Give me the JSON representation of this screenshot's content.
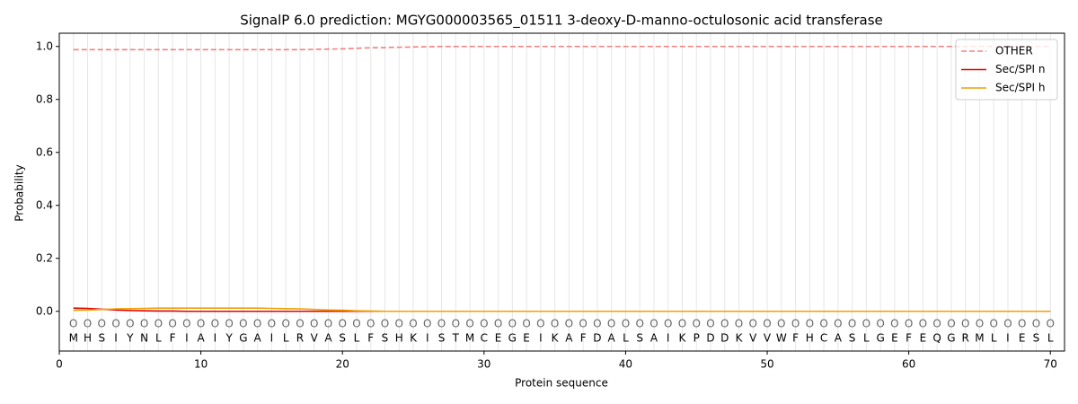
{
  "chart_data": {
    "type": "line",
    "title": "SignalP 6.0 prediction: MGYG000003565_01511 3-deoxy-D-manno-octulosonic acid transferase",
    "xlabel": "Protein sequence",
    "ylabel": "Probability",
    "x": [
      1,
      2,
      3,
      4,
      5,
      6,
      7,
      8,
      9,
      10,
      11,
      12,
      13,
      14,
      15,
      16,
      17,
      18,
      19,
      20,
      21,
      22,
      23,
      24,
      25,
      26,
      27,
      28,
      29,
      30,
      31,
      32,
      33,
      34,
      35,
      36,
      37,
      38,
      39,
      40,
      41,
      42,
      43,
      44,
      45,
      46,
      47,
      48,
      49,
      50,
      51,
      52,
      53,
      54,
      55,
      56,
      57,
      58,
      59,
      60,
      61,
      62,
      63,
      64,
      65,
      66,
      67,
      68,
      69,
      70
    ],
    "sequence": [
      "M",
      "H",
      "S",
      "I",
      "Y",
      "N",
      "L",
      "F",
      "I",
      "A",
      "I",
      "Y",
      "G",
      "A",
      "I",
      "L",
      "R",
      "V",
      "A",
      "S",
      "L",
      "F",
      "S",
      "H",
      "K",
      "I",
      "S",
      "T",
      "M",
      "C",
      "E",
      "G",
      "E",
      "I",
      "K",
      "A",
      "F",
      "D",
      "A",
      "L",
      "S",
      "A",
      "I",
      "K",
      "P",
      "D",
      "D",
      "K",
      "V",
      "V",
      "W",
      "F",
      "H",
      "C",
      "A",
      "S",
      "L",
      "G",
      "E",
      "F",
      "E",
      "Q",
      "G",
      "R",
      "M",
      "L",
      "I",
      "E",
      "S",
      "L"
    ],
    "predicted_labels": [
      "O",
      "O",
      "O",
      "O",
      "O",
      "O",
      "O",
      "O",
      "O",
      "O",
      "O",
      "O",
      "O",
      "O",
      "O",
      "O",
      "O",
      "O",
      "O",
      "O",
      "O",
      "O",
      "O",
      "O",
      "O",
      "O",
      "O",
      "O",
      "O",
      "O",
      "O",
      "O",
      "O",
      "O",
      "O",
      "O",
      "O",
      "O",
      "O",
      "O",
      "O",
      "O",
      "O",
      "O",
      "O",
      "O",
      "O",
      "O",
      "O",
      "O",
      "O",
      "O",
      "O",
      "O",
      "O",
      "O",
      "O",
      "O",
      "O",
      "O",
      "O",
      "O",
      "O",
      "O",
      "O",
      "O",
      "O",
      "O",
      "O",
      "O"
    ],
    "series": [
      {
        "name": "OTHER",
        "color": "#f08080",
        "dashed": true,
        "values": [
          0.988,
          0.988,
          0.988,
          0.988,
          0.988,
          0.988,
          0.988,
          0.988,
          0.988,
          0.988,
          0.988,
          0.988,
          0.988,
          0.988,
          0.988,
          0.988,
          0.988,
          0.989,
          0.99,
          0.991,
          0.993,
          0.995,
          0.996,
          0.997,
          0.998,
          0.999,
          1,
          1,
          1,
          1,
          1,
          1,
          1,
          1,
          1,
          1,
          1,
          1,
          1,
          1,
          1,
          1,
          1,
          1,
          1,
          1,
          1,
          1,
          1,
          1,
          1,
          1,
          1,
          1,
          1,
          1,
          1,
          1,
          1,
          1,
          1,
          1,
          1,
          1,
          1,
          1,
          1,
          1,
          1,
          1
        ]
      },
      {
        "name": "Sec/SPI n",
        "color": "#e00000",
        "dashed": false,
        "values": [
          0.012,
          0.011,
          0.008,
          0.005,
          0.003,
          0.002,
          0.001,
          0.001,
          0,
          0,
          0,
          0,
          0,
          0,
          0,
          0,
          0,
          0,
          0,
          0,
          0,
          0,
          0,
          0,
          0,
          0,
          0,
          0,
          0,
          0,
          0,
          0,
          0,
          0,
          0,
          0,
          0,
          0,
          0,
          0,
          0,
          0,
          0,
          0,
          0,
          0,
          0,
          0,
          0,
          0,
          0,
          0,
          0,
          0,
          0,
          0,
          0,
          0,
          0,
          0,
          0,
          0,
          0,
          0,
          0,
          0,
          0,
          0,
          0,
          0
        ]
      },
      {
        "name": "Sec/SPI h",
        "color": "#f0a000",
        "dashed": false,
        "values": [
          0.004,
          0.005,
          0.007,
          0.009,
          0.01,
          0.011,
          0.012,
          0.012,
          0.012,
          0.012,
          0.012,
          0.012,
          0.012,
          0.012,
          0.011,
          0.01,
          0.009,
          0.007,
          0.005,
          0.004,
          0.002,
          0.001,
          0,
          0,
          0,
          0,
          0,
          0,
          0,
          0,
          0,
          0,
          0,
          0,
          0,
          0,
          0,
          0,
          0,
          0,
          0,
          0,
          0,
          0,
          0,
          0,
          0,
          0,
          0,
          0,
          0,
          0,
          0,
          0,
          0,
          0,
          0,
          0,
          0,
          0,
          0,
          0,
          0,
          0,
          0,
          0,
          0,
          0,
          0,
          0
        ]
      }
    ],
    "xlim": [
      0,
      71
    ],
    "ylim": [
      -0.15,
      1.05
    ],
    "xticks": [
      0,
      10,
      20,
      30,
      40,
      50,
      60,
      70
    ],
    "yticks": [
      {
        "value": 0,
        "label": "0.0"
      },
      {
        "value": 0.2,
        "label": "0.2"
      },
      {
        "value": 0.4,
        "label": "0.4"
      },
      {
        "value": 0.6,
        "label": "0.6"
      },
      {
        "value": 0.8,
        "label": "0.8"
      },
      {
        "value": 1,
        "label": "1.0"
      }
    ],
    "grid": true,
    "legend": "upper right"
  }
}
